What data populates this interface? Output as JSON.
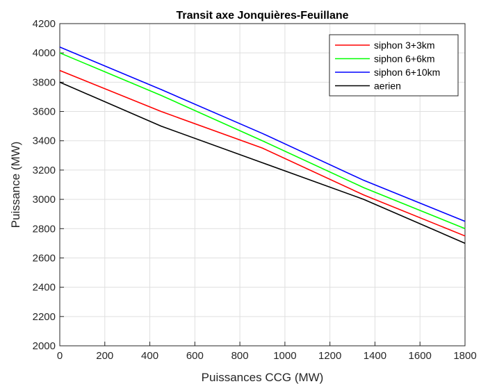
{
  "chart_data": {
    "type": "line",
    "title": "Transit axe Jonquières-Feuillane",
    "xlabel": "Puissances CCG (MW)",
    "ylabel": "Puissance (MW)",
    "xlim": [
      0,
      1800
    ],
    "ylim": [
      2000,
      4200
    ],
    "xticks": [
      0,
      200,
      400,
      600,
      800,
      1000,
      1200,
      1400,
      1600,
      1800
    ],
    "yticks": [
      2000,
      2200,
      2400,
      2600,
      2800,
      3000,
      3200,
      3400,
      3600,
      3800,
      4000,
      4200
    ],
    "grid": true,
    "legend_position": "top-right",
    "series": [
      {
        "name": "siphon 3+3km",
        "color": "#ff0000",
        "x": [
          0,
          450,
          900,
          1350,
          1800
        ],
        "y": [
          3880,
          3600,
          3350,
          3030,
          2750
        ]
      },
      {
        "name": "siphon 6+6km",
        "color": "#00ff00",
        "x": [
          0,
          450,
          900,
          1350,
          1800
        ],
        "y": [
          4000,
          3710,
          3400,
          3080,
          2800
        ]
      },
      {
        "name": "siphon 6+10km",
        "color": "#0000ff",
        "x": [
          0,
          450,
          900,
          1350,
          1800
        ],
        "y": [
          4040,
          3750,
          3450,
          3130,
          2850
        ]
      },
      {
        "name": "aerien",
        "color": "#000000",
        "x": [
          0,
          450,
          900,
          1350,
          1800
        ],
        "y": [
          3800,
          3500,
          3250,
          3000,
          2700
        ]
      }
    ]
  }
}
